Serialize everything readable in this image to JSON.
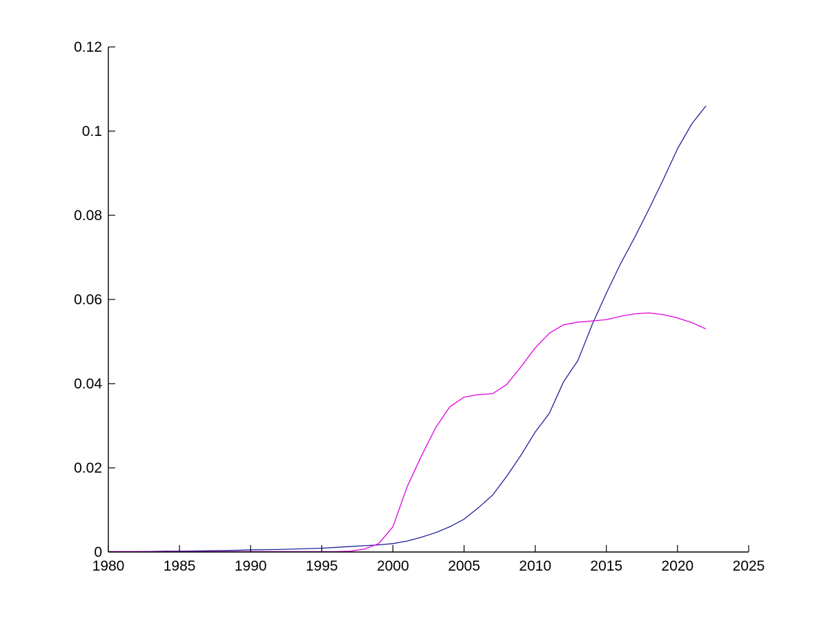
{
  "chart_data": {
    "type": "line",
    "title": "",
    "xlabel": "",
    "ylabel": "",
    "grid": false,
    "legend_position": "none",
    "background_color": "#ffffff",
    "axis_color": "#000000",
    "xlim": [
      1980,
      2025
    ],
    "ylim": [
      0,
      0.12
    ],
    "xticks": [
      1980,
      1985,
      1990,
      1995,
      2000,
      2005,
      2010,
      2015,
      2020,
      2025
    ],
    "xtick_labels": [
      "1980",
      "1985",
      "1990",
      "1995",
      "2000",
      "2005",
      "2010",
      "2015",
      "2020",
      "2025"
    ],
    "yticks": [
      0,
      0.02,
      0.04,
      0.06,
      0.08,
      0.1,
      0.12
    ],
    "ytick_labels": [
      "0",
      "0.02",
      "0.04",
      "0.06",
      "0.08",
      "0.1",
      "0.12"
    ],
    "x": [
      1980,
      1981,
      1982,
      1983,
      1984,
      1985,
      1986,
      1987,
      1988,
      1989,
      1990,
      1991,
      1992,
      1993,
      1994,
      1995,
      1996,
      1997,
      1998,
      1999,
      2000,
      2001,
      2002,
      2003,
      2004,
      2005,
      2006,
      2007,
      2008,
      2009,
      2010,
      2011,
      2012,
      2013,
      2014,
      2015,
      2016,
      2017,
      2018,
      2019,
      2020,
      2021,
      2022
    ],
    "series": [
      {
        "name": "blue-line",
        "color": "#20209a",
        "values": [
          0.0001,
          0.0001,
          0.0001,
          0.00015,
          0.0002,
          0.0002,
          0.00025,
          0.0003,
          0.00035,
          0.0004,
          0.0005,
          0.00055,
          0.0006,
          0.0007,
          0.0008,
          0.0009,
          0.0011,
          0.0013,
          0.0015,
          0.0017,
          0.002,
          0.0026,
          0.0035,
          0.0046,
          0.006,
          0.0078,
          0.0105,
          0.0135,
          0.018,
          0.023,
          0.0285,
          0.033,
          0.0405,
          0.0455,
          0.054,
          0.0615,
          0.0685,
          0.0748,
          0.0815,
          0.0885,
          0.0958,
          0.1017,
          0.106
        ]
      },
      {
        "name": "magenta-line",
        "color": "#dd00dd",
        "values": [
          0.0001,
          0.0001,
          0.0001,
          0.0001,
          0.0001,
          0.0001,
          0.0001,
          0.0001,
          0.0001,
          0.0001,
          0.0001,
          0.0001,
          0.0001,
          0.0001,
          0.0001,
          0.0001,
          0.0001,
          0.0002,
          0.0007,
          0.002,
          0.006,
          0.0155,
          0.0228,
          0.0295,
          0.0345,
          0.0368,
          0.0374,
          0.0376,
          0.0398,
          0.044,
          0.0485,
          0.052,
          0.054,
          0.0546,
          0.0549,
          0.0552,
          0.056,
          0.0566,
          0.0568,
          0.0564,
          0.0556,
          0.0545,
          0.053
        ]
      }
    ]
  }
}
